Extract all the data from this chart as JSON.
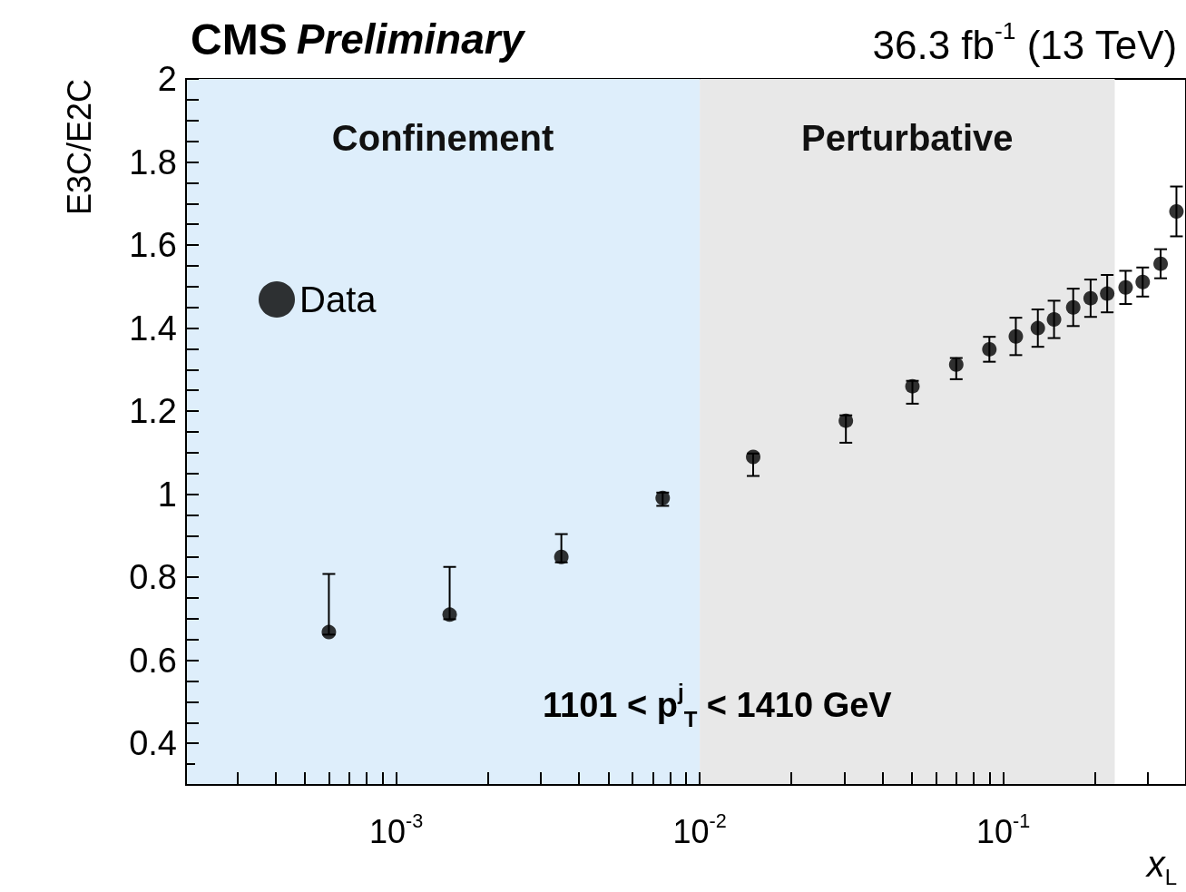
{
  "chart_data": {
    "type": "scatter",
    "title": "CMS Preliminary",
    "subtitle": "36.3 fb$^{-1}$ (13 TeV)",
    "xlabel": "x$_{L}$",
    "ylabel": "E3C/E2C",
    "annotations": [
      "1101 < p$^{j}$$_{T}$ < 1410 GeV"
    ],
    "log": "x",
    "grid": false,
    "legend": "top left",
    "marker": "circle",
    "xlim": [
      0.000203,
      0.4
    ],
    "ylim": [
      0.3,
      2
    ],
    "xticks": [
      {
        "value": 0.0003,
        "label": null
      },
      {
        "value": 0.0004,
        "label": null
      },
      {
        "value": 0.0005,
        "label": null
      },
      {
        "value": 0.0006,
        "label": null
      },
      {
        "value": 0.0007,
        "label": null
      },
      {
        "value": 0.0008,
        "label": null
      },
      {
        "value": 0.0009,
        "label": null
      },
      {
        "value": 0.001,
        "label": "10$^{-3}$"
      },
      {
        "value": 0.002,
        "label": null
      },
      {
        "value": 0.003,
        "label": null
      },
      {
        "value": 0.004,
        "label": null
      },
      {
        "value": 0.005,
        "label": null
      },
      {
        "value": 0.006,
        "label": null
      },
      {
        "value": 0.007,
        "label": null
      },
      {
        "value": 0.008,
        "label": null
      },
      {
        "value": 0.009,
        "label": null
      },
      {
        "value": 0.01,
        "label": "10$^{-2}$"
      },
      {
        "value": 0.02,
        "label": null
      },
      {
        "value": 0.03,
        "label": null
      },
      {
        "value": 0.04,
        "label": null
      },
      {
        "value": 0.05,
        "label": null
      },
      {
        "value": 0.06,
        "label": null
      },
      {
        "value": 0.07,
        "label": null
      },
      {
        "value": 0.08,
        "label": null
      },
      {
        "value": 0.09,
        "label": null
      },
      {
        "value": 0.1,
        "label": "10$^{-1}$"
      },
      {
        "value": 0.2,
        "label": null
      },
      {
        "value": 0.3,
        "label": null
      },
      {
        "value": 0.4,
        "label": null
      }
    ],
    "yticks": [
      0.4,
      {
        "value": 0.45,
        "label": null
      },
      {
        "value": 0.5,
        "label": null
      },
      {
        "value": 0.55,
        "label": null
      },
      0.6,
      {
        "value": 0.65,
        "label": null
      },
      {
        "value": 0.7,
        "label": null
      },
      {
        "value": 0.75,
        "label": null
      },
      0.8,
      {
        "value": 0.85,
        "label": null
      },
      {
        "value": 0.9,
        "label": null
      },
      {
        "value": 0.95,
        "label": null
      },
      1,
      {
        "value": 1.05,
        "label": null
      },
      {
        "value": 1.1,
        "label": null
      },
      {
        "value": 1.15,
        "label": null
      },
      1.2,
      {
        "value": 1.25,
        "label": null
      },
      {
        "value": 1.3,
        "label": null
      },
      {
        "value": 1.35,
        "label": null
      },
      1.4,
      {
        "value": 1.45,
        "label": null
      },
      {
        "value": 1.5,
        "label": null
      },
      {
        "value": 1.55,
        "label": null
      },
      1.6,
      {
        "value": 1.65,
        "label": null
      },
      {
        "value": 1.7,
        "label": null
      },
      {
        "value": 1.75,
        "label": null
      },
      1.8,
      {
        "value": 1.85,
        "label": null
      },
      {
        "value": 1.9,
        "label": null
      },
      {
        "value": 1.95,
        "label": null
      },
      2
    ],
    "bands": [
      {
        "axis": "x",
        "from": 0.000203,
        "to": 0.01,
        "label": "Confinement",
        "color": "#deeefb"
      },
      {
        "axis": "x",
        "from": 0.01,
        "to": 0.233,
        "label": "Perturbative",
        "color": "#e8e8e8"
      }
    ],
    "series": [
      {
        "name": "Data",
        "color": "#000000",
        "x": [
          0.0006,
          0.0015,
          0.0035,
          0.00755,
          0.015,
          0.0303,
          0.0502,
          0.07,
          0.09,
          0.11,
          0.13,
          0.147,
          0.17,
          0.194,
          0.22,
          0.253,
          0.288,
          0.33,
          0.372
        ],
        "values": [
          0.668,
          0.71,
          0.849,
          0.991,
          1.09,
          1.177,
          1.26,
          1.312,
          1.349,
          1.38,
          1.4,
          1.421,
          1.45,
          1.472,
          1.483,
          1.498,
          1.511,
          1.555,
          1.681
        ],
        "errors": [
          [
            0.662,
            0.808
          ],
          [
            0.699,
            0.825
          ],
          [
            0.836,
            0.904
          ],
          [
            0.972,
            1.004
          ],
          [
            1.044,
            1.098
          ],
          [
            1.124,
            1.19
          ],
          [
            1.218,
            1.273
          ],
          [
            1.277,
            1.328
          ],
          0.03,
          0.045,
          0.045,
          0.045,
          0.045,
          0.045,
          0.045,
          0.04,
          0.035,
          0.035,
          0.06
        ]
      }
    ]
  }
}
